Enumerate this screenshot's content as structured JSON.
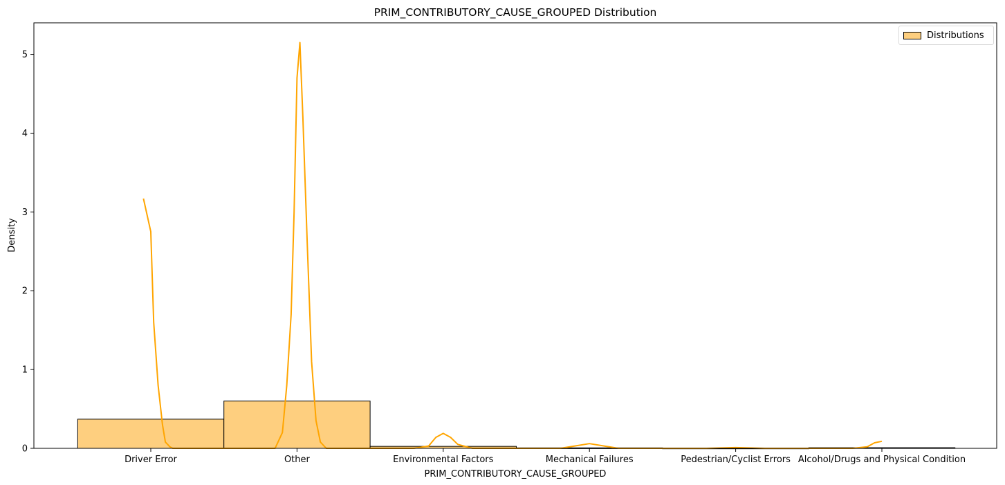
{
  "chart_data": {
    "type": "bar",
    "title": "PRIM_CONTRIBUTORY_CAUSE_GROUPED Distribution",
    "xlabel": "PRIM_CONTRIBUTORY_CAUSE_GROUPED",
    "ylabel": "Density",
    "categories": [
      "Driver Error",
      "Other",
      "Environmental Factors",
      "Mechanical Failures",
      "Pedestrian/Cyclist Errors",
      "Alcohol/Drugs and Physical Condition"
    ],
    "ylim": [
      0,
      5.4
    ],
    "yticks": [
      "0",
      "1",
      "2",
      "3",
      "4",
      "5"
    ],
    "series": [
      {
        "name": "Distributions",
        "values": [
          0.37,
          0.6,
          0.025,
          0.006,
          0.003,
          0.008
        ]
      }
    ],
    "kde": {
      "x": [
        -0.05,
        0.0,
        0.02,
        0.05,
        0.08,
        0.1,
        0.13,
        0.15,
        0.2,
        0.3,
        0.8,
        0.85,
        0.9,
        0.93,
        0.96,
        0.98,
        1.0,
        1.02,
        1.04,
        1.07,
        1.1,
        1.13,
        1.16,
        1.2,
        1.3,
        1.8,
        1.9,
        1.95,
        2.0,
        2.05,
        2.1,
        2.2,
        2.8,
        2.9,
        3.0,
        3.1,
        3.2,
        3.8,
        4.0,
        4.2,
        4.8,
        4.9,
        4.95,
        5.0
      ],
      "y": [
        3.17,
        2.75,
        1.6,
        0.8,
        0.3,
        0.08,
        0.02,
        0.0,
        0.0,
        0.0,
        0.0,
        0.0,
        0.2,
        0.8,
        1.7,
        3.0,
        4.7,
        5.15,
        4.2,
        2.6,
        1.1,
        0.35,
        0.08,
        0.0,
        0.0,
        0.0,
        0.03,
        0.14,
        0.19,
        0.14,
        0.05,
        0.0,
        0.0,
        0.03,
        0.06,
        0.03,
        0.0,
        0.0,
        0.01,
        0.0,
        0.0,
        0.02,
        0.07,
        0.09
      ]
    },
    "grid": false,
    "legend": "top-right",
    "colors": {
      "bar_fill": "#fecf7f",
      "bar_edge": "#000000",
      "kde_line": "#ffa500"
    }
  }
}
